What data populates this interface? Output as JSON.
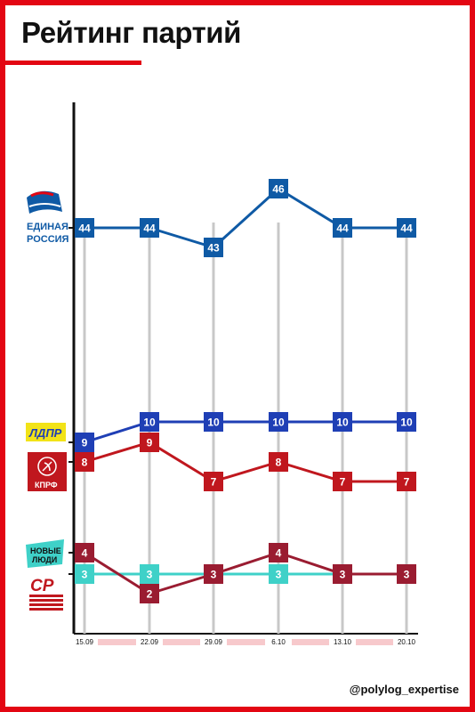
{
  "title": "Рейтинг партий",
  "handle": "@polylog_expertise",
  "colors": {
    "frame": "#e30613",
    "er": "#0f5aa5",
    "ldpr": "#1f3fb5",
    "kprf": "#c0171e",
    "nl": "#3fd1c8",
    "sr": "#9a1c31"
  },
  "logos": {
    "er": {
      "text1": "ЕДИНАЯ",
      "text2": "РОССИЯ",
      "icon": "bear-icon"
    },
    "ldpr": {
      "text": "ЛДПР"
    },
    "kprf": {
      "text": "КПРФ",
      "icon": "hammer-sickle-icon"
    },
    "nl": {
      "text1": "НОВЫЕ",
      "text2": "ЛЮДИ"
    },
    "sr": {
      "text": "СР"
    }
  },
  "chart_data": {
    "type": "line",
    "x": [
      "15.09",
      "22.09",
      "29.09",
      "6.10",
      "13.10",
      "20.10"
    ],
    "series": [
      {
        "key": "er",
        "values": [
          44,
          44,
          43,
          46,
          44,
          44
        ]
      },
      {
        "key": "ldpr",
        "values": [
          9,
          10,
          10,
          10,
          10,
          10
        ]
      },
      {
        "key": "kprf",
        "values": [
          8,
          9,
          7,
          8,
          7,
          7
        ]
      },
      {
        "key": "sr",
        "values": [
          4,
          2,
          3,
          4,
          3,
          3
        ]
      },
      {
        "key": "nl",
        "values": [
          3,
          3,
          3,
          3,
          3,
          3
        ]
      }
    ]
  }
}
